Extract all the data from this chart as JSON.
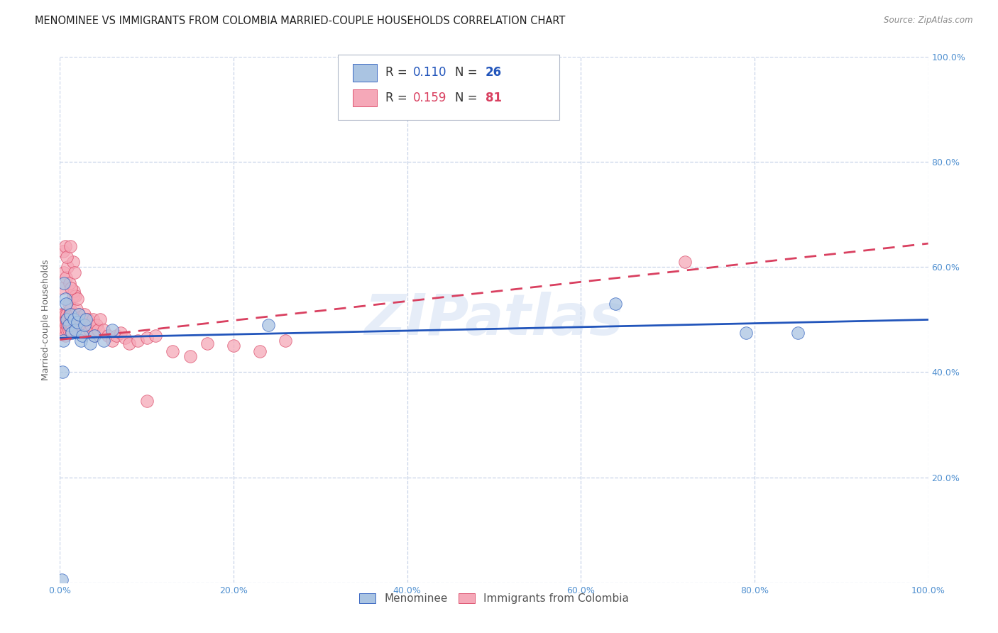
{
  "title": "MENOMINEE VS IMMIGRANTS FROM COLOMBIA MARRIED-COUPLE HOUSEHOLDS CORRELATION CHART",
  "source": "Source: ZipAtlas.com",
  "ylabel": "Married-couple Households",
  "xlim": [
    0,
    1.0
  ],
  "ylim": [
    0,
    1.0
  ],
  "xtick_vals": [
    0.0,
    0.2,
    0.4,
    0.6,
    0.8,
    1.0
  ],
  "ytick_vals": [
    0.0,
    0.2,
    0.4,
    0.6,
    0.8,
    1.0
  ],
  "xtick_labels": [
    "0.0%",
    "20.0%",
    "40.0%",
    "60.0%",
    "80.0%",
    "100.0%"
  ],
  "ytick_labels": [
    "",
    "20.0%",
    "40.0%",
    "60.0%",
    "80.0%",
    "100.0%"
  ],
  "legend_labels": [
    "Menominee",
    "Immigrants from Colombia"
  ],
  "R_menominee": 0.11,
  "N_menominee": 26,
  "R_colombia": 0.159,
  "N_colombia": 81,
  "color_menominee": "#aac4e2",
  "color_colombia": "#f5a8b8",
  "line_color_menominee": "#2255bb",
  "line_color_colombia": "#d94060",
  "watermark": "ZIPatlas",
  "menominee_x": [
    0.002,
    0.003,
    0.004,
    0.005,
    0.006,
    0.007,
    0.008,
    0.01,
    0.012,
    0.014,
    0.016,
    0.018,
    0.02,
    0.022,
    0.024,
    0.026,
    0.028,
    0.03,
    0.035,
    0.04,
    0.05,
    0.06,
    0.24,
    0.64,
    0.79,
    0.85
  ],
  "menominee_y": [
    0.005,
    0.4,
    0.46,
    0.57,
    0.54,
    0.53,
    0.5,
    0.49,
    0.51,
    0.475,
    0.5,
    0.48,
    0.495,
    0.51,
    0.46,
    0.47,
    0.49,
    0.5,
    0.455,
    0.47,
    0.46,
    0.48,
    0.49,
    0.53,
    0.475,
    0.475
  ],
  "colombia_x": [
    0.001,
    0.002,
    0.003,
    0.003,
    0.004,
    0.004,
    0.005,
    0.005,
    0.006,
    0.006,
    0.007,
    0.007,
    0.008,
    0.008,
    0.009,
    0.009,
    0.01,
    0.01,
    0.011,
    0.011,
    0.012,
    0.012,
    0.013,
    0.013,
    0.014,
    0.014,
    0.015,
    0.015,
    0.016,
    0.016,
    0.017,
    0.018,
    0.019,
    0.02,
    0.021,
    0.022,
    0.023,
    0.024,
    0.025,
    0.026,
    0.027,
    0.028,
    0.03,
    0.032,
    0.034,
    0.036,
    0.038,
    0.04,
    0.042,
    0.044,
    0.046,
    0.05,
    0.055,
    0.06,
    0.065,
    0.07,
    0.075,
    0.08,
    0.09,
    0.1,
    0.11,
    0.13,
    0.15,
    0.17,
    0.2,
    0.23,
    0.26,
    0.003,
    0.005,
    0.007,
    0.009,
    0.011,
    0.013,
    0.015,
    0.017,
    0.004,
    0.006,
    0.008,
    0.012,
    0.1,
    0.72
  ],
  "colombia_y": [
    0.49,
    0.51,
    0.48,
    0.5,
    0.49,
    0.51,
    0.495,
    0.48,
    0.47,
    0.51,
    0.49,
    0.5,
    0.48,
    0.51,
    0.49,
    0.5,
    0.53,
    0.48,
    0.49,
    0.51,
    0.52,
    0.49,
    0.5,
    0.48,
    0.51,
    0.49,
    0.545,
    0.51,
    0.555,
    0.5,
    0.51,
    0.545,
    0.52,
    0.54,
    0.505,
    0.51,
    0.49,
    0.505,
    0.495,
    0.48,
    0.5,
    0.51,
    0.49,
    0.5,
    0.48,
    0.49,
    0.5,
    0.47,
    0.49,
    0.48,
    0.5,
    0.48,
    0.47,
    0.46,
    0.47,
    0.475,
    0.465,
    0.455,
    0.46,
    0.465,
    0.47,
    0.44,
    0.43,
    0.455,
    0.45,
    0.44,
    0.46,
    0.56,
    0.59,
    0.58,
    0.6,
    0.57,
    0.56,
    0.61,
    0.59,
    0.63,
    0.64,
    0.62,
    0.64,
    0.345,
    0.61
  ],
  "background_color": "#ffffff",
  "grid_color": "#c8d4e8",
  "title_fontsize": 10.5,
  "axis_label_fontsize": 9,
  "tick_fontsize": 9,
  "tick_color": "#5090d0"
}
